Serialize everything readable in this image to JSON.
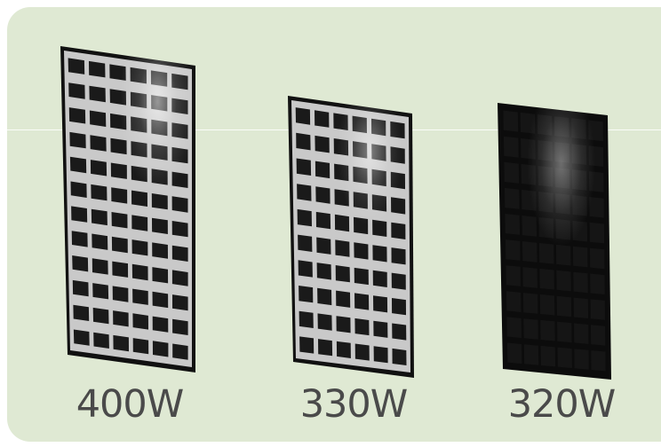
{
  "panels": [
    {
      "label": "400W",
      "style": "white-grid",
      "cols": 6,
      "rows": 12
    },
    {
      "label": "330W",
      "style": "white-grid",
      "cols": 6,
      "rows": 10
    },
    {
      "label": "320W",
      "style": "all-black",
      "cols": 6,
      "rows": 10
    }
  ],
  "colors": {
    "background": "#dfe9d3",
    "text": "#4a4a4a",
    "panel_frame": "#111111",
    "panel_cell": "#1a1a1a"
  }
}
